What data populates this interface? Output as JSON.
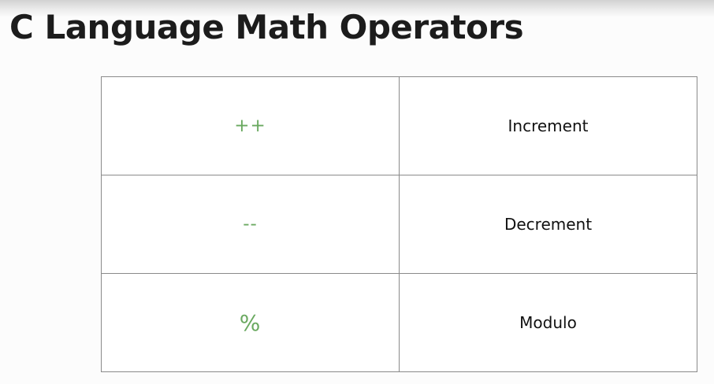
{
  "slide": {
    "title": "C Language Math Operators"
  },
  "operators": [
    {
      "symbol": "++",
      "name": "Increment"
    },
    {
      "symbol": "--",
      "name": "Decrement"
    },
    {
      "symbol": "%",
      "name": "Modulo"
    }
  ],
  "colors": {
    "symbol_text": "#6aa960",
    "name_text": "#111111",
    "table_border": "#8a8a8a",
    "title_text": "#1c1c1c"
  }
}
